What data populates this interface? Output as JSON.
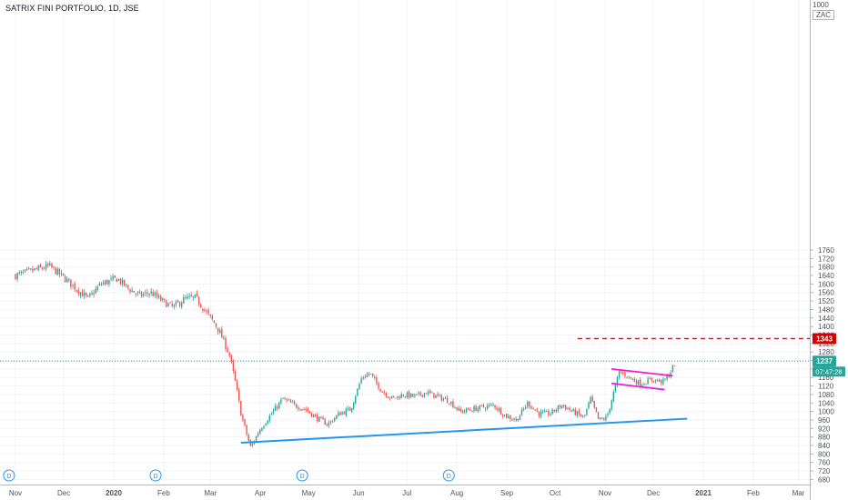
{
  "header": {
    "title": "SATRIX FINI PORTFOLIO, 1D, JSE",
    "corner_top": "1000",
    "corner_currency": "ZAC"
  },
  "colors": {
    "up": "#26a69a",
    "down": "#ef5350",
    "trendline": "#2196f3",
    "flag": "#e91ee0",
    "target": "#b71c1c",
    "last_price": "#26a69a",
    "grid": "#f0f3fa",
    "axis_text": "#50535e"
  },
  "chart_data": {
    "type": "candlestick",
    "title": "SATRIX FINI PORTFOLIO, 1D, JSE",
    "ylim": [
      660,
      1790
    ],
    "yticks": [
      680,
      720,
      760,
      800,
      840,
      880,
      920,
      960,
      1000,
      1040,
      1080,
      1120,
      1160,
      1200,
      1240,
      1280,
      1320,
      1360,
      1400,
      1440,
      1480,
      1520,
      1560,
      1600,
      1640,
      1680,
      1720,
      1760
    ],
    "xlabels": [
      "Nov",
      "Dec",
      "2020",
      "Feb",
      "Mar",
      "Apr",
      "May",
      "Jun",
      "Jul",
      "Aug",
      "Sep",
      "Oct",
      "Nov",
      "Dec",
      "2021",
      "Feb",
      "Mar"
    ],
    "grid": true,
    "price_series": [
      {
        "date": "2019-11-01",
        "close": 1640
      },
      {
        "date": "2019-11-15",
        "close": 1670
      },
      {
        "date": "2019-11-22",
        "close": 1685
      },
      {
        "date": "2019-12-01",
        "close": 1630
      },
      {
        "date": "2019-12-10",
        "close": 1570
      },
      {
        "date": "2019-12-16",
        "close": 1530
      },
      {
        "date": "2019-12-24",
        "close": 1600
      },
      {
        "date": "2020-01-03",
        "close": 1625
      },
      {
        "date": "2020-01-10",
        "close": 1580
      },
      {
        "date": "2020-01-17",
        "close": 1545
      },
      {
        "date": "2020-01-24",
        "close": 1560
      },
      {
        "date": "2020-01-31",
        "close": 1520
      },
      {
        "date": "2020-02-07",
        "close": 1490
      },
      {
        "date": "2020-02-14",
        "close": 1530
      },
      {
        "date": "2020-02-21",
        "close": 1535
      },
      {
        "date": "2020-02-28",
        "close": 1460
      },
      {
        "date": "2020-03-05",
        "close": 1400
      },
      {
        "date": "2020-03-10",
        "close": 1320
      },
      {
        "date": "2020-03-13",
        "close": 1260
      },
      {
        "date": "2020-03-17",
        "close": 1120
      },
      {
        "date": "2020-03-20",
        "close": 990
      },
      {
        "date": "2020-03-24",
        "close": 880
      },
      {
        "date": "2020-03-26",
        "close": 830
      },
      {
        "date": "2020-04-01",
        "close": 920
      },
      {
        "date": "2020-04-08",
        "close": 990
      },
      {
        "date": "2020-04-15",
        "close": 1060
      },
      {
        "date": "2020-04-22",
        "close": 1030
      },
      {
        "date": "2020-04-29",
        "close": 1010
      },
      {
        "date": "2020-05-06",
        "close": 970
      },
      {
        "date": "2020-05-13",
        "close": 940
      },
      {
        "date": "2020-05-20",
        "close": 990
      },
      {
        "date": "2020-05-27",
        "close": 1010
      },
      {
        "date": "2020-06-03",
        "close": 1160
      },
      {
        "date": "2020-06-08",
        "close": 1180
      },
      {
        "date": "2020-06-15",
        "close": 1100
      },
      {
        "date": "2020-06-22",
        "close": 1060
      },
      {
        "date": "2020-06-29",
        "close": 1080
      },
      {
        "date": "2020-07-06",
        "close": 1070
      },
      {
        "date": "2020-07-13",
        "close": 1090
      },
      {
        "date": "2020-07-20",
        "close": 1070
      },
      {
        "date": "2020-07-27",
        "close": 1050
      },
      {
        "date": "2020-08-03",
        "close": 1000
      },
      {
        "date": "2020-08-10",
        "close": 1010
      },
      {
        "date": "2020-08-17",
        "close": 1020
      },
      {
        "date": "2020-08-24",
        "close": 1030
      },
      {
        "date": "2020-08-31",
        "close": 980
      },
      {
        "date": "2020-09-07",
        "close": 960
      },
      {
        "date": "2020-09-14",
        "close": 1040
      },
      {
        "date": "2020-09-21",
        "close": 990
      },
      {
        "date": "2020-09-28",
        "close": 990
      },
      {
        "date": "2020-10-05",
        "close": 1030
      },
      {
        "date": "2020-10-12",
        "close": 1000
      },
      {
        "date": "2020-10-19",
        "close": 970
      },
      {
        "date": "2020-10-23",
        "close": 1060
      },
      {
        "date": "2020-10-28",
        "close": 960
      },
      {
        "date": "2020-11-02",
        "close": 970
      },
      {
        "date": "2020-11-06",
        "close": 1080
      },
      {
        "date": "2020-11-10",
        "close": 1190
      },
      {
        "date": "2020-11-16",
        "close": 1160
      },
      {
        "date": "2020-11-23",
        "close": 1130
      },
      {
        "date": "2020-11-30",
        "close": 1150
      },
      {
        "date": "2020-12-07",
        "close": 1140
      },
      {
        "date": "2020-12-11",
        "close": 1175
      },
      {
        "date": "2020-12-15",
        "close": 1237
      }
    ],
    "last_price": 1237,
    "last_price_countdown": "07:47:28",
    "target_level": {
      "value": 1343,
      "label": "1343",
      "from": "2020-10-15",
      "to": "2021-03-31"
    },
    "trendline": {
      "from": {
        "date": "2020-03-20",
        "price": 853
      },
      "to": {
        "date": "2020-12-22",
        "price": 966
      }
    },
    "flag_upper": {
      "from": {
        "date": "2020-11-05",
        "price": 1200
      },
      "to": {
        "date": "2020-12-13",
        "price": 1168
      }
    },
    "flag_lower": {
      "from": {
        "date": "2020-11-05",
        "price": 1132
      },
      "to": {
        "date": "2020-12-08",
        "price": 1103
      }
    },
    "dividend_markers": [
      {
        "date": "2019-10-28",
        "label": "D"
      },
      {
        "date": "2020-01-27",
        "label": "D"
      },
      {
        "date": "2020-04-27",
        "label": "D"
      },
      {
        "date": "2020-07-27",
        "label": "D"
      }
    ]
  }
}
